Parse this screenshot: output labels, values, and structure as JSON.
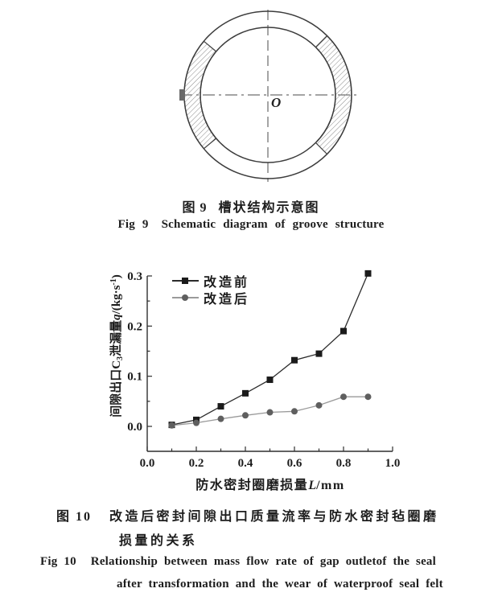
{
  "figure9": {
    "center_label": "O",
    "caption_zh": {
      "tag": "图 9",
      "text": "槽状结构示意图"
    },
    "caption_en": {
      "tag": "Fig 9",
      "text": "Schematic diagram of groove structure"
    }
  },
  "figure10": {
    "caption_zh": {
      "tag": "图 10",
      "line1": "改造后密封间隙出口质量流率与防水密封毡圈磨",
      "line2": "损量的关系"
    },
    "caption_en": {
      "tag": "Fig 10",
      "line1": "Relationship between mass flow rate of gap outletof the seal",
      "line2": "after transformation and the wear of waterproof seal felt"
    }
  },
  "chart_data": {
    "type": "line",
    "x": [
      0.1,
      0.2,
      0.3,
      0.4,
      0.5,
      0.6,
      0.7,
      0.8,
      0.9
    ],
    "series": [
      {
        "name": "改造前",
        "marker": "square",
        "marker_color": "#1b1b1b",
        "line_color": "#2b2b2b",
        "values": [
          0.003,
          0.013,
          0.04,
          0.066,
          0.093,
          0.132,
          0.145,
          0.19,
          0.305
        ]
      },
      {
        "name": "改造后",
        "marker": "circle",
        "marker_color": "#5f5f5f",
        "line_color": "#9a9a9a",
        "values": [
          0.002,
          0.007,
          0.015,
          0.022,
          0.028,
          0.03,
          0.042,
          0.059,
          0.059
        ]
      }
    ],
    "xlim": [
      0,
      1.0
    ],
    "ylim": [
      0,
      0.3
    ],
    "xticks": {
      "labels": [
        "0.0",
        "0.2",
        "0.4",
        "0.6",
        "0.8",
        "1.0"
      ],
      "values": [
        0,
        0.2,
        0.4,
        0.6,
        0.8,
        1.0
      ],
      "minor": [
        0.1,
        0.3,
        0.5,
        0.7,
        0.9
      ]
    },
    "yticks": {
      "labels": [
        "0.0",
        "0.1",
        "0.2",
        "0.3"
      ],
      "values": [
        0,
        0.1,
        0.2,
        0.3
      ],
      "minor": [
        0.05,
        0.15,
        0.25
      ]
    },
    "xlabel": {
      "text": "防水密封圈磨损量",
      "var": "L",
      "unit": "/mm"
    },
    "ylabel": {
      "p1": "间隙出口C",
      "sub": "3",
      "p2": "泄漏量",
      "var": "q",
      "p3": "/(kg·s",
      "sup": "-1",
      "p4": ")"
    },
    "legend_position": "top-left",
    "grid": false,
    "title": ""
  }
}
